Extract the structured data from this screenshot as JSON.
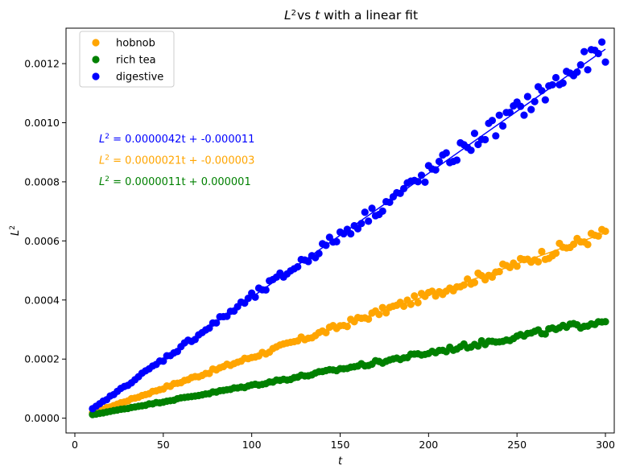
{
  "chart_data": {
    "type": "scatter",
    "title": {
      "prefix": "L",
      "sup": "2",
      "middle": "vs ",
      "italic_var": "t",
      "suffix": " with a linear fit"
    },
    "xlabel": "t",
    "ylabel": {
      "base": "L",
      "sup": "2"
    },
    "xlim": [
      -5,
      305
    ],
    "ylim": [
      -5e-05,
      0.00132
    ],
    "x_ticks": [
      0,
      50,
      100,
      150,
      200,
      250,
      300
    ],
    "x_tick_labels": [
      "0",
      "50",
      "100",
      "150",
      "200",
      "250",
      "300"
    ],
    "y_ticks": [
      0.0,
      0.0002,
      0.0004,
      0.0006,
      0.0008,
      0.001,
      0.0012
    ],
    "y_tick_labels": [
      "0.0000",
      "0.0002",
      "0.0004",
      "0.0006",
      "0.0008",
      "0.0010",
      "0.0012"
    ],
    "grid": false,
    "legend_position": "top-left",
    "x_range": {
      "start": 10,
      "end": 300,
      "step": 2
    },
    "series": [
      {
        "name": "hobnob",
        "color": "#ffa500",
        "slope": 2.1e-06,
        "intercept": -3e-06,
        "equation": " = 0.0000021t + -0.000003"
      },
      {
        "name": "rich tea",
        "color": "#008000",
        "slope": 1.1e-06,
        "intercept": 1e-06,
        "equation": " = 0.0000011t + 0.000001"
      },
      {
        "name": "digestive",
        "color": "#0000ff",
        "slope": 4.2e-06,
        "intercept": -1.1e-05,
        "equation": " = 0.0000042t + -0.000011"
      }
    ],
    "annotation_order": [
      "digestive",
      "hobnob",
      "rich tea"
    ]
  }
}
